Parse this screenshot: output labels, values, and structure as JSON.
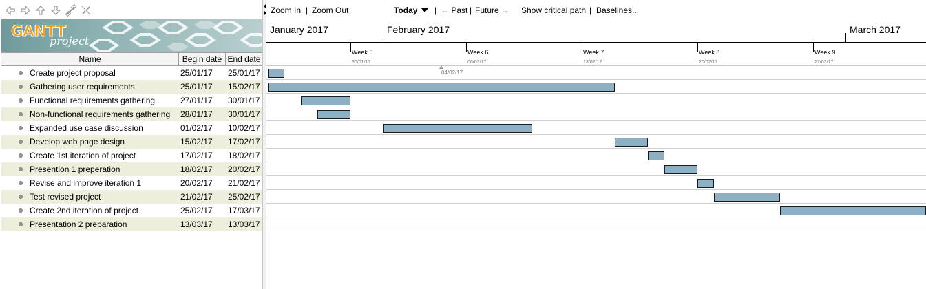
{
  "nav_toolbar": {
    "icons": [
      "back-arrow-icon",
      "forward-arrow-icon",
      "up-arrow-icon",
      "down-arrow-icon",
      "link-icon",
      "unlink-icon"
    ]
  },
  "logo": {
    "word1": "GANTT",
    "word2": "project"
  },
  "table": {
    "headers": {
      "name": "Name",
      "begin": "Begin date",
      "end": "End date"
    },
    "rows": [
      {
        "name": "Create project proposal",
        "begin": "25/01/17",
        "end": "25/01/17"
      },
      {
        "name": "Gathering user requirements",
        "begin": "25/01/17",
        "end": "15/02/17"
      },
      {
        "name": "Functional requirements gathering",
        "begin": "27/01/17",
        "end": "30/01/17"
      },
      {
        "name": "Non-functional requirements gathering",
        "begin": "28/01/17",
        "end": "30/01/17"
      },
      {
        "name": "Expanded use case discussion",
        "begin": "01/02/17",
        "end": "10/02/17"
      },
      {
        "name": "Develop web page design",
        "begin": "15/02/17",
        "end": "17/02/17"
      },
      {
        "name": "Create 1st iteration of project",
        "begin": "17/02/17",
        "end": "18/02/17"
      },
      {
        "name": "Presention 1 preperation",
        "begin": "18/02/17",
        "end": "20/02/17"
      },
      {
        "name": "Revise and improve iteration 1",
        "begin": "20/02/17",
        "end": "21/02/17"
      },
      {
        "name": "Test revised project",
        "begin": "21/02/17",
        "end": "25/02/17"
      },
      {
        "name": "Create 2nd iteration of project",
        "begin": "25/02/17",
        "end": "17/03/17"
      },
      {
        "name": "Presentation 2 preparation",
        "begin": "13/03/17",
        "end": "13/03/17"
      }
    ]
  },
  "chart_toolbar": {
    "zoom_in": "Zoom In",
    "zoom_out": "Zoom Out",
    "sep": "|",
    "today": "Today",
    "past": "← Past",
    "future": "Future →",
    "critical_path": "Show critical path",
    "baselines": "Baselines..."
  },
  "timeline": {
    "months": [
      "January 2017",
      "February 2017",
      "March 2017"
    ],
    "weeks": [
      {
        "label": "Week 5",
        "date": "30/01/17"
      },
      {
        "label": "Week 6",
        "date": "06/02/17"
      },
      {
        "label": "Week 7",
        "date": "13/02/17"
      },
      {
        "label": "Week 8",
        "date": "20/02/17"
      },
      {
        "label": "Week 9",
        "date": "27/02/17"
      }
    ],
    "today_label": "04/02/17"
  },
  "gantt": {
    "view_start": "25/01/17",
    "bar_color": "#8eb0c5"
  }
}
